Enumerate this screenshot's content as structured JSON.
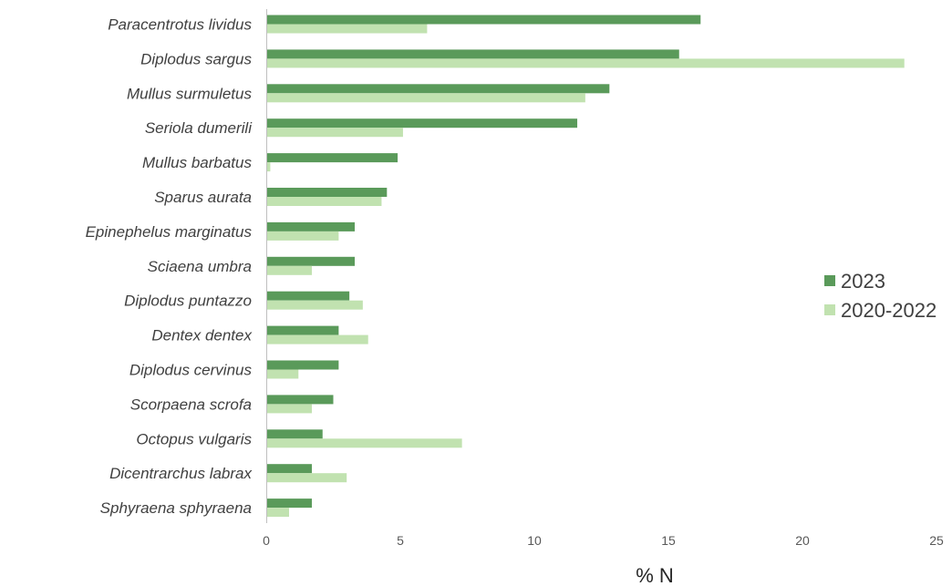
{
  "chart_data": {
    "type": "bar",
    "orientation": "horizontal",
    "title": "",
    "xlabel": "% N",
    "ylabel": "",
    "xlim": [
      0,
      25
    ],
    "xticks": [
      0,
      5,
      10,
      15,
      20,
      25
    ],
    "grid": false,
    "legend_position": "right",
    "categories": [
      "Paracentrotus lividus",
      "Diplodus sargus",
      "Mullus surmuletus",
      "Seriola dumerili",
      "Mullus barbatus",
      "Sparus aurata",
      "Epinephelus marginatus",
      "Sciaena umbra",
      "Diplodus puntazzo",
      "Dentex dentex",
      "Diplodus cervinus",
      "Scorpaena scrofa",
      "Octopus vulgaris",
      "Dicentrarchus labrax",
      "Sphyraena sphyraena"
    ],
    "series": [
      {
        "name": "2023",
        "color": "#5a9a5a",
        "values": [
          16.2,
          15.4,
          12.8,
          11.6,
          4.9,
          4.5,
          3.3,
          3.3,
          3.1,
          2.7,
          2.7,
          2.5,
          2.1,
          1.7,
          1.7
        ]
      },
      {
        "name": "2020-2022",
        "color": "#c1e2b0",
        "values": [
          6.0,
          23.8,
          11.9,
          5.1,
          0.15,
          4.3,
          2.7,
          1.7,
          3.6,
          3.8,
          1.2,
          1.7,
          7.3,
          3.0,
          0.85
        ]
      }
    ]
  }
}
